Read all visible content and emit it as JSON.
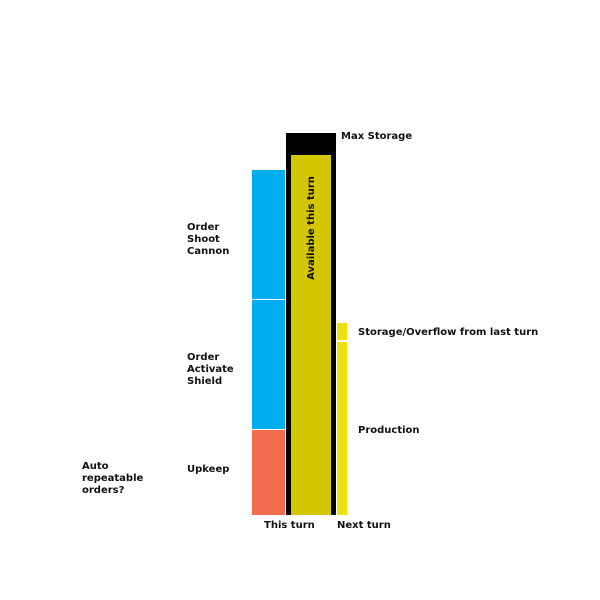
{
  "diagram": {
    "colors": {
      "order": "#00adef",
      "upkeep": "#f26c4f",
      "available": "#d4c600",
      "storage_frame": "#000000",
      "production": "#ede10d",
      "text": "#111111"
    },
    "labels": {
      "max_storage": "Max Storage",
      "available_this_turn": "Available this turn",
      "storage_overflow": "Storage/Overflow from last turn",
      "production": "Production",
      "order_shoot_cannon": "Order\nShoot\nCannon",
      "order_activate_shield": "Order\nActivate\nShield",
      "upkeep": "Upkeep",
      "auto_repeatable": "Auto\nrepeatable\norders?",
      "this_turn": "This turn",
      "next_turn": "Next turn"
    }
  }
}
